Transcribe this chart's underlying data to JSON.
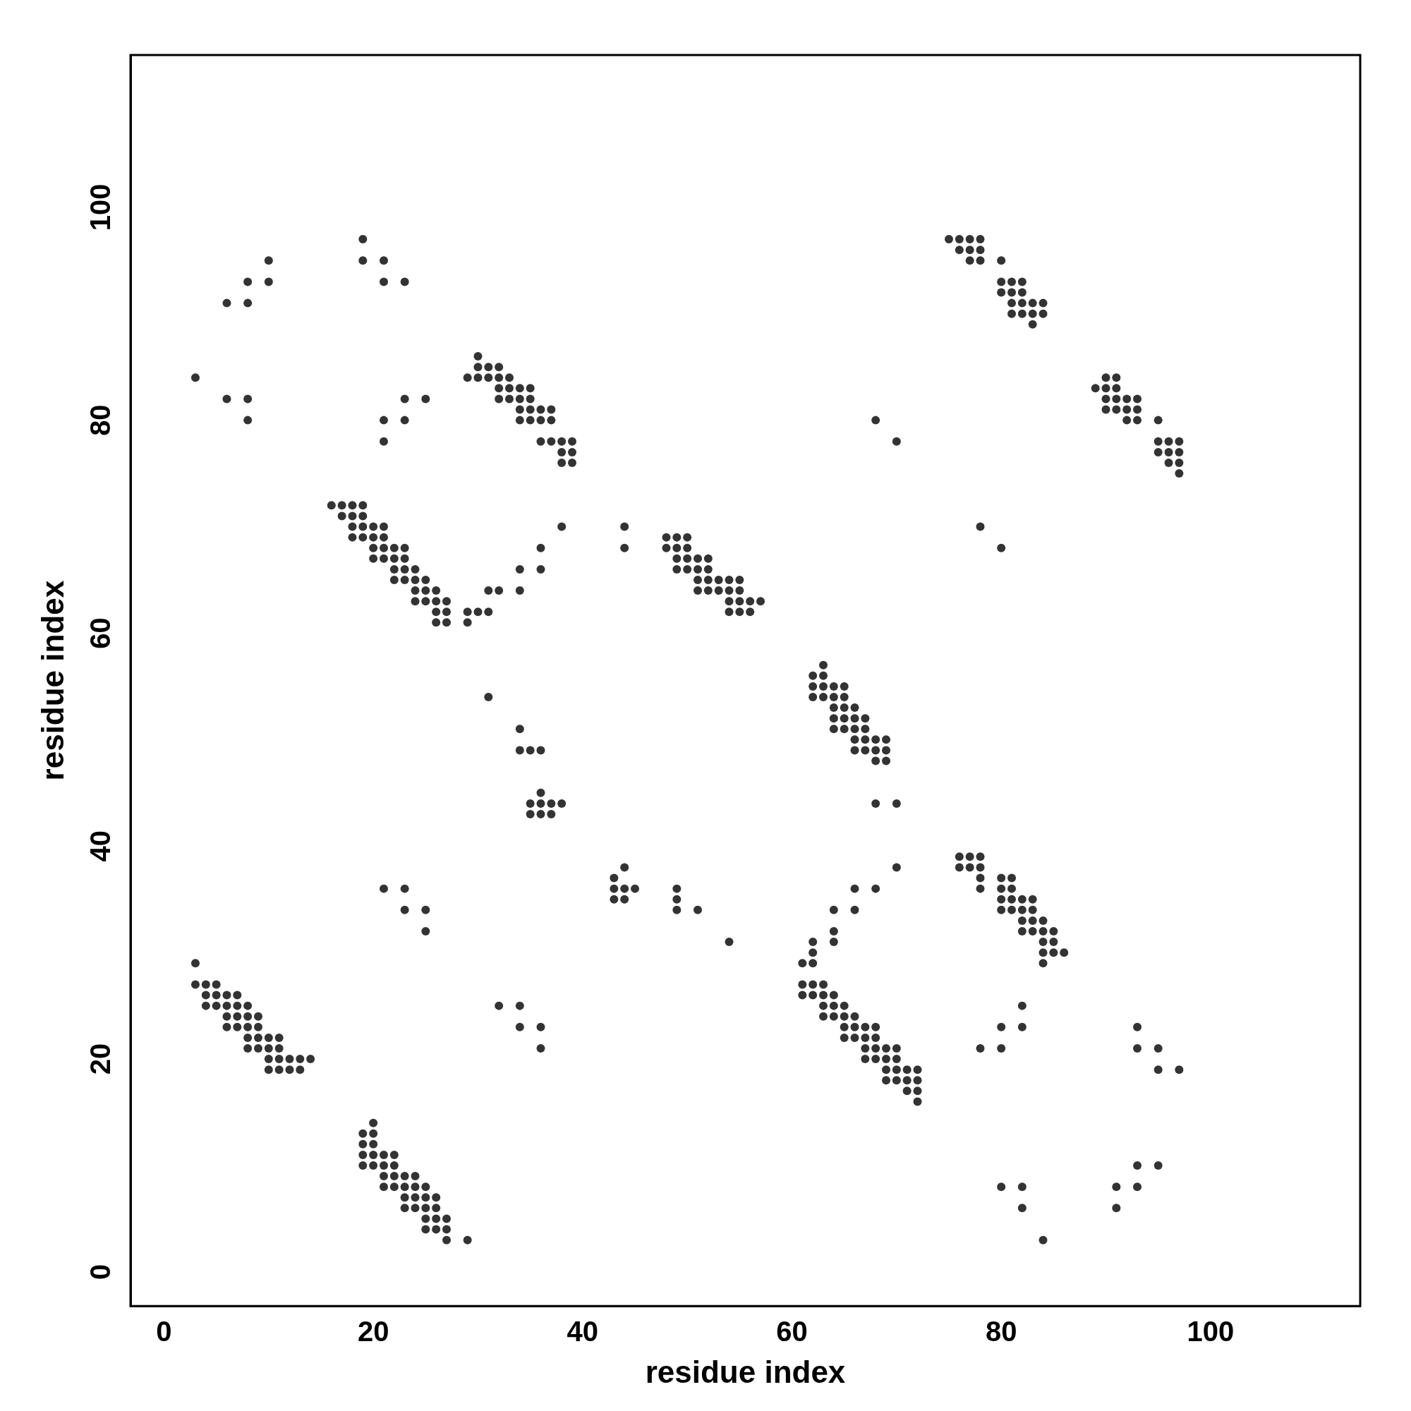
{
  "chart_data": {
    "type": "scatter",
    "xlabel": "residue index",
    "ylabel": "residue index",
    "xlim": [
      -3.2,
      114.3
    ],
    "ylim": [
      -3.2,
      114.3
    ],
    "xticks": [
      0,
      20,
      40,
      60,
      80,
      100
    ],
    "yticks": [
      0,
      20,
      40,
      60,
      80,
      100
    ],
    "grid": false,
    "legend": false,
    "marker": "circle",
    "series": [
      {
        "color": "#333333",
        "x": [
          3,
          3,
          4,
          5,
          4,
          5,
          6,
          7,
          4,
          5,
          6,
          7,
          8,
          6,
          7,
          8,
          9,
          6,
          7,
          8,
          9,
          8,
          9,
          10,
          11,
          8,
          9,
          10,
          11,
          10,
          11,
          12,
          13,
          14,
          10,
          11,
          12,
          13,
          20,
          19,
          20,
          19,
          20,
          19,
          20,
          21,
          22,
          19,
          20,
          21,
          22,
          21,
          22,
          23,
          24,
          21,
          22,
          23,
          24,
          25,
          23,
          24,
          25,
          26,
          23,
          24,
          25,
          26,
          25,
          26,
          27,
          25,
          26,
          27,
          27,
          29,
          16,
          17,
          18,
          19,
          17,
          18,
          19,
          18,
          19,
          20,
          21,
          18,
          19,
          20,
          21,
          20,
          21,
          22,
          23,
          20,
          21,
          22,
          23,
          22,
          23,
          24,
          22,
          23,
          24,
          25,
          24,
          25,
          26,
          24,
          25,
          26,
          27,
          26,
          27,
          26,
          27,
          29,
          30,
          31,
          29,
          31,
          32,
          34,
          34,
          36,
          36,
          38,
          30,
          30,
          31,
          32,
          29,
          30,
          31,
          32,
          33,
          32,
          33,
          34,
          35,
          32,
          33,
          34,
          35,
          34,
          35,
          36,
          37,
          34,
          35,
          36,
          37,
          36,
          37,
          38,
          39,
          38,
          39,
          38,
          39,
          3,
          6,
          8,
          8,
          6,
          8,
          8,
          10,
          10,
          19,
          19,
          21,
          21,
          23,
          21,
          21,
          23,
          23,
          25,
          44,
          44,
          31,
          34,
          34,
          35,
          36,
          36,
          35,
          36,
          37,
          38,
          35,
          36,
          37,
          43,
          44,
          43,
          44,
          45,
          43,
          44,
          49,
          49,
          49,
          51,
          54,
          21,
          23,
          23,
          25,
          25,
          32,
          34,
          34,
          36,
          36,
          48,
          49,
          50,
          48,
          49,
          50,
          49,
          50,
          51,
          52,
          49,
          50,
          51,
          52,
          51,
          52,
          53,
          54,
          55,
          51,
          52,
          53,
          54,
          55,
          54,
          55,
          56,
          57,
          54,
          55,
          56,
          63,
          62,
          63,
          62,
          63,
          64,
          65,
          62,
          63,
          64,
          65,
          64,
          65,
          66,
          64,
          65,
          66,
          67,
          64,
          65,
          66,
          67,
          66,
          67,
          68,
          69,
          66,
          67,
          68,
          69,
          68,
          69,
          68,
          70,
          70,
          61,
          62,
          62,
          62,
          61,
          62,
          63,
          61,
          62,
          63,
          64,
          63,
          64,
          65,
          63,
          64,
          65,
          66,
          65,
          66,
          67,
          68,
          65,
          66,
          67,
          68,
          67,
          68,
          69,
          70,
          67,
          68,
          69,
          70,
          69,
          70,
          71,
          72,
          69,
          70,
          71,
          72,
          71,
          72,
          72,
          64,
          64,
          64,
          66,
          66,
          68,
          76,
          77,
          78,
          76,
          77,
          78,
          78,
          80,
          81,
          78,
          80,
          81,
          80,
          81,
          82,
          83,
          80,
          81,
          82,
          83,
          82,
          83,
          84,
          82,
          83,
          84,
          85,
          84,
          85,
          84,
          85,
          86,
          84,
          78,
          80,
          80,
          82,
          82,
          75,
          76,
          77,
          78,
          76,
          77,
          78,
          77,
          78,
          80,
          80,
          81,
          82,
          80,
          81,
          82,
          81,
          82,
          83,
          84,
          81,
          82,
          83,
          84,
          83,
          89,
          90,
          91,
          90,
          91,
          90,
          91,
          92,
          93,
          90,
          91,
          92,
          93,
          92,
          93,
          95,
          95,
          96,
          97,
          95,
          96,
          97,
          96,
          97,
          97,
          68,
          70,
          78,
          80,
          80,
          82,
          82,
          84,
          91,
          91,
          93,
          93,
          95,
          93,
          93,
          95,
          95,
          97
        ],
        "values": [
          29,
          27,
          27,
          27,
          26,
          26,
          26,
          26,
          25,
          25,
          25,
          25,
          25,
          24,
          24,
          24,
          24,
          23,
          23,
          23,
          23,
          22,
          22,
          22,
          22,
          21,
          21,
          21,
          21,
          20,
          20,
          20,
          20,
          20,
          19,
          19,
          19,
          19,
          14,
          13,
          13,
          12,
          12,
          11,
          11,
          11,
          11,
          10,
          10,
          10,
          10,
          9,
          9,
          9,
          9,
          8,
          8,
          8,
          8,
          8,
          7,
          7,
          7,
          7,
          6,
          6,
          6,
          6,
          5,
          5,
          5,
          4,
          4,
          4,
          3,
          3,
          72,
          72,
          72,
          72,
          71,
          71,
          71,
          70,
          70,
          70,
          70,
          69,
          69,
          69,
          69,
          68,
          68,
          68,
          68,
          67,
          67,
          67,
          67,
          66,
          66,
          66,
          65,
          65,
          65,
          65,
          64,
          64,
          64,
          63,
          63,
          63,
          63,
          62,
          62,
          61,
          61,
          62,
          62,
          62,
          61,
          64,
          64,
          64,
          66,
          66,
          68,
          70,
          86,
          85,
          85,
          85,
          84,
          84,
          84,
          84,
          84,
          83,
          83,
          83,
          83,
          82,
          82,
          82,
          82,
          81,
          81,
          81,
          81,
          80,
          80,
          80,
          80,
          78,
          78,
          78,
          78,
          77,
          77,
          76,
          76,
          84,
          82,
          82,
          80,
          91,
          91,
          93,
          93,
          95,
          97,
          95,
          95,
          93,
          93,
          80,
          78,
          82,
          80,
          82,
          70,
          68,
          54,
          51,
          49,
          49,
          49,
          45,
          44,
          44,
          44,
          44,
          43,
          43,
          43,
          37,
          38,
          36,
          36,
          36,
          35,
          35,
          36,
          35,
          34,
          34,
          31,
          36,
          36,
          34,
          34,
          32,
          25,
          25,
          23,
          23,
          21,
          69,
          69,
          69,
          68,
          68,
          68,
          67,
          67,
          67,
          67,
          66,
          66,
          66,
          66,
          65,
          65,
          65,
          65,
          65,
          64,
          64,
          64,
          64,
          64,
          63,
          63,
          63,
          63,
          62,
          62,
          62,
          57,
          56,
          56,
          55,
          55,
          55,
          55,
          54,
          54,
          54,
          54,
          53,
          53,
          53,
          52,
          52,
          52,
          52,
          51,
          51,
          51,
          51,
          50,
          50,
          50,
          50,
          49,
          49,
          49,
          49,
          48,
          48,
          44,
          44,
          38,
          29,
          30,
          31,
          29,
          27,
          27,
          27,
          26,
          26,
          26,
          26,
          25,
          25,
          25,
          24,
          24,
          24,
          24,
          23,
          23,
          23,
          23,
          22,
          22,
          22,
          22,
          21,
          21,
          21,
          21,
          20,
          20,
          20,
          20,
          19,
          19,
          19,
          19,
          18,
          18,
          18,
          18,
          17,
          17,
          16,
          32,
          31,
          34,
          34,
          36,
          36,
          39,
          39,
          39,
          38,
          38,
          38,
          37,
          37,
          37,
          36,
          36,
          36,
          35,
          35,
          35,
          35,
          34,
          34,
          34,
          34,
          33,
          33,
          33,
          32,
          32,
          32,
          32,
          31,
          31,
          30,
          30,
          30,
          29,
          21,
          21,
          23,
          23,
          25,
          97,
          97,
          97,
          97,
          96,
          96,
          96,
          95,
          95,
          95,
          93,
          93,
          93,
          92,
          92,
          92,
          91,
          91,
          91,
          91,
          90,
          90,
          90,
          90,
          89,
          83,
          84,
          84,
          83,
          83,
          82,
          82,
          82,
          82,
          81,
          81,
          81,
          81,
          80,
          80,
          80,
          78,
          78,
          78,
          77,
          77,
          77,
          76,
          76,
          75,
          80,
          78,
          70,
          68,
          8,
          8,
          6,
          3,
          8,
          6,
          8,
          10,
          10,
          23,
          21,
          21,
          19,
          19
        ]
      }
    ]
  }
}
